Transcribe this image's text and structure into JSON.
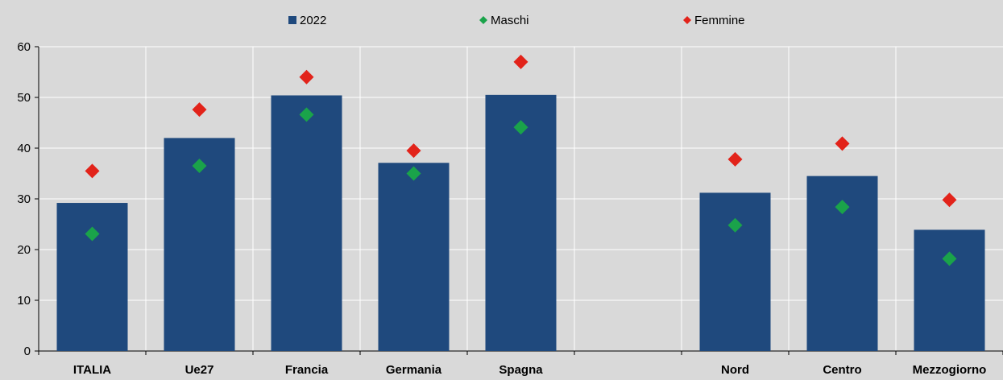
{
  "chart_data": {
    "type": "bar",
    "categories": [
      "ITALIA",
      "Ue27",
      "Francia",
      "Germania",
      "Spagna",
      "",
      "Nord",
      "Centro",
      "Mezzogiorno"
    ],
    "series": [
      {
        "name": "2022",
        "kind": "bar",
        "color": "#1f497d",
        "values": [
          29.2,
          42.0,
          50.4,
          37.1,
          50.5,
          null,
          31.2,
          34.5,
          23.9
        ]
      },
      {
        "name": "Maschi",
        "kind": "marker",
        "color": "#1aa34a",
        "values": [
          23.1,
          36.5,
          46.6,
          35.0,
          44.1,
          null,
          24.8,
          28.4,
          18.2
        ]
      },
      {
        "name": "Femmine",
        "kind": "marker",
        "color": "#e2231a",
        "values": [
          35.5,
          47.6,
          54.0,
          39.5,
          57.0,
          null,
          37.8,
          40.9,
          29.8
        ]
      }
    ],
    "ylim": [
      0,
      60
    ],
    "yticks": [
      0,
      10,
      20,
      30,
      40,
      50,
      60
    ],
    "grid": true,
    "legend_position": "top"
  }
}
